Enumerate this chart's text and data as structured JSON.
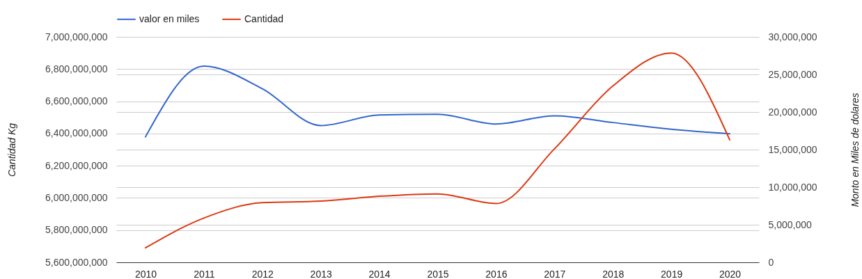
{
  "chart_data": {
    "type": "line",
    "categories": [
      "2010",
      "2011",
      "2012",
      "2013",
      "2014",
      "2015",
      "2016",
      "2017",
      "2018",
      "2019",
      "2020"
    ],
    "ylabel": "Cantidad Kg",
    "y2label": "Monto en Miles de dolares",
    "ylim": [
      5600000000,
      7000000000
    ],
    "yticks": [
      {
        "value": 5600000000,
        "label": "5,600,000,000"
      },
      {
        "value": 5800000000,
        "label": "5,800,000,000"
      },
      {
        "value": 6000000000,
        "label": "6,000,000,000"
      },
      {
        "value": 6200000000,
        "label": "6,200,000,000"
      },
      {
        "value": 6400000000,
        "label": "6,400,000,000"
      },
      {
        "value": 6600000000,
        "label": "6,600,000,000"
      },
      {
        "value": 6800000000,
        "label": "6,800,000,000"
      },
      {
        "value": 7000000000,
        "label": "7,000,000,000"
      }
    ],
    "y2lim": [
      0,
      30000000
    ],
    "y2ticks": [
      0,
      {
        "value": 5000000,
        "label": "5,000,000"
      },
      {
        "value": 10000000,
        "label": "10,000,000"
      },
      {
        "value": 15000000,
        "label": "15,000,000"
      },
      {
        "value": 20000000,
        "label": "20,000,000"
      },
      {
        "value": 25000000,
        "label": "25,000,000"
      },
      {
        "value": 30000000,
        "label": "30,000,000"
      }
    ],
    "grid": true,
    "legend": "top left",
    "series": [
      {
        "name": "valor en miles",
        "color": "#3366cc",
        "axis": "y2",
        "values": [
          16700000,
          26100000,
          23100000,
          18200000,
          19600000,
          19700000,
          18400000,
          19500000,
          18600000,
          17700000,
          17100000
        ]
      },
      {
        "name": "Cantidad",
        "color": "#dc3912",
        "values": [
          5690000000,
          5875000000,
          5970000000,
          5980000000,
          6010000000,
          6025000000,
          5965000000,
          6305000000,
          6695000000,
          6900000000,
          6360000000
        ]
      }
    ]
  }
}
